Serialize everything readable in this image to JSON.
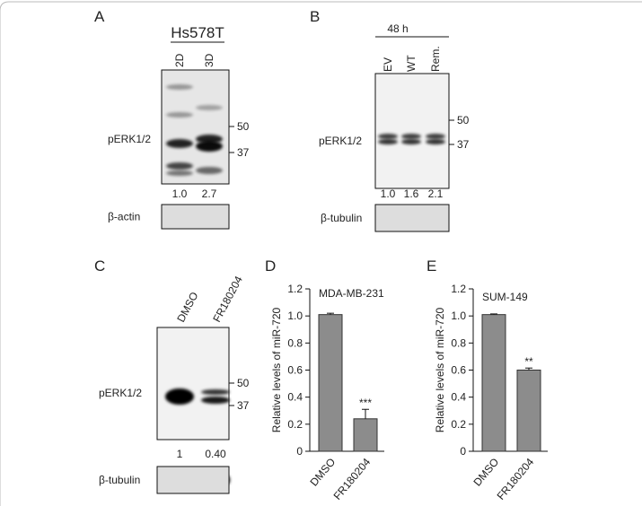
{
  "panels": {
    "A": {
      "label": "A",
      "cell_line": "Hs578T",
      "lanes": [
        "2D",
        "3D"
      ],
      "markers": [
        "50",
        "37"
      ],
      "band_label": "pERK1/2",
      "quantification": [
        "1.0",
        "2.7"
      ],
      "loading_control": "β-actin"
    },
    "B": {
      "label": "B",
      "time": "48 h",
      "lanes": [
        "EV",
        "WT",
        "Rem."
      ],
      "markers": [
        "50",
        "37"
      ],
      "band_label": "pERK1/2",
      "quantification": [
        "1.0",
        "1.6",
        "2.1"
      ],
      "loading_control": "β-tubulin"
    },
    "C": {
      "label": "C",
      "lanes": [
        "DMSO",
        "FR180204"
      ],
      "markers": [
        "50",
        "37"
      ],
      "band_label": "pERK1/2",
      "quantification": [
        "1",
        "0.40"
      ],
      "loading_control": "β-tubulin"
    }
  },
  "chart_data": [
    {
      "type": "bar",
      "panel_label": "D",
      "title": "MDA-MB-231",
      "y_label": "Relative levels of miR-720",
      "categories": [
        "DMSO",
        "FR180204"
      ],
      "values": [
        1.01,
        0.24
      ],
      "errors": [
        0.01,
        0.07
      ],
      "color": "#8c8c8c",
      "annotations": [
        {
          "text": "***",
          "category": "FR180204"
        }
      ],
      "ylim": [
        0,
        1.2
      ],
      "yticks": [
        0,
        0.2,
        0.4,
        0.6,
        0.8,
        {
          "value": 1,
          "label": "1.0"
        },
        1.2
      ]
    },
    {
      "type": "bar",
      "panel_label": "E",
      "title": "SUM-149",
      "y_label": "Relative levels of miR-720",
      "categories": [
        "DMSO",
        "FR180204"
      ],
      "values": [
        1.01,
        0.6
      ],
      "errors": [
        0.005,
        0.015
      ],
      "color": "#8c8c8c",
      "annotations": [
        {
          "text": "**",
          "category": "FR180204"
        }
      ],
      "ylim": [
        0,
        1.2
      ],
      "yticks": [
        0,
        0.2,
        0.4,
        0.6,
        0.8,
        {
          "value": 1,
          "label": "1.0"
        },
        1.2
      ]
    }
  ]
}
